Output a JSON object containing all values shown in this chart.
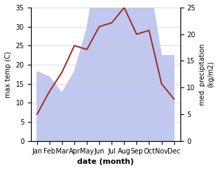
{
  "months": [
    "Jan",
    "Feb",
    "Mar",
    "Apr",
    "May",
    "Jun",
    "Jul",
    "Aug",
    "Sep",
    "Oct",
    "Nov",
    "Dec"
  ],
  "month_indices": [
    0,
    1,
    2,
    3,
    4,
    5,
    6,
    7,
    8,
    9,
    10,
    11
  ],
  "temperature": [
    7,
    13,
    18,
    25,
    24,
    30,
    31,
    35,
    28,
    29,
    15,
    11
  ],
  "precipitation": [
    13,
    12,
    9,
    13,
    21,
    35,
    35,
    35,
    29,
    30,
    16,
    16
  ],
  "temp_color": "#a03030",
  "precip_fill_color": "#c0c8f0",
  "ylim_temp": [
    0,
    35
  ],
  "ylim_precip": [
    0,
    25
  ],
  "xlabel": "date (month)",
  "ylabel_left": "max temp (C)",
  "ylabel_right": "med. precipitation\n(kg/m2)",
  "bg_color": "#ffffff",
  "grid_color": "#cccccc"
}
